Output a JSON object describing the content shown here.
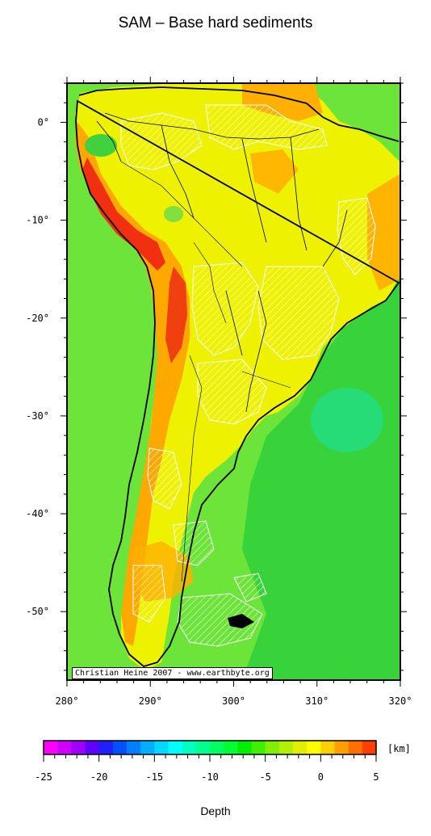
{
  "title": "SAM – Base hard sediments",
  "credit": "Christian Heine 2007 - www.earthbyte.org",
  "map": {
    "lon_range": [
      280,
      320
    ],
    "lat_range": [
      -57,
      4
    ],
    "lon_ticks": [
      "280°",
      "290°",
      "300°",
      "310°",
      "320°"
    ],
    "lat_ticks": [
      "0°",
      "-10°",
      "-20°",
      "-30°",
      "-40°",
      "-50°"
    ],
    "ocean_color": "#3cd43c",
    "land_color": "#f0f000",
    "high_color": "#e02020",
    "hatch_color": "#ffffff"
  },
  "colorbar": {
    "label": "Depth",
    "unit": "[km]",
    "min": -25,
    "max": 5,
    "tick_labels": [
      "-25",
      "-20",
      "-15",
      "-10",
      "-5",
      "0",
      "5"
    ],
    "colors": [
      "#ff00ff",
      "#d000ff",
      "#a000ff",
      "#6000ff",
      "#2020ff",
      "#0050ff",
      "#0080ff",
      "#00b0ff",
      "#00d8ff",
      "#00ffff",
      "#00ffc0",
      "#00ff90",
      "#00ff60",
      "#00ff30",
      "#00ee00",
      "#40f000",
      "#80f000",
      "#b0f000",
      "#e0f000",
      "#ffff00",
      "#ffd000",
      "#ffa000",
      "#ff7000",
      "#ff4000"
    ]
  }
}
